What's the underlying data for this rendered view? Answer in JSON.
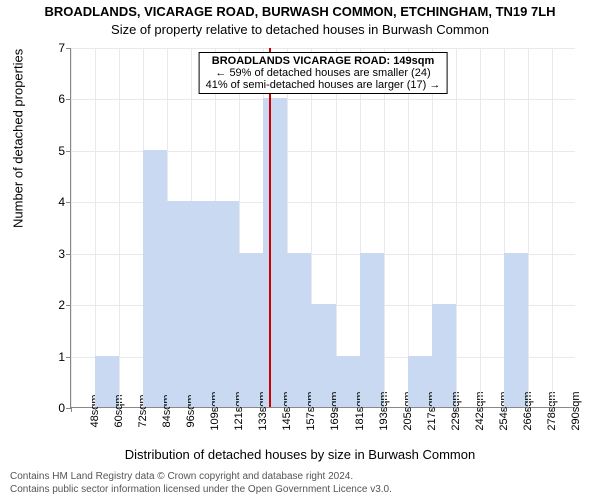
{
  "titles": {
    "main": "BROADLANDS, VICARAGE ROAD, BURWASH COMMON, ETCHINGHAM, TN19 7LH",
    "sub": "Size of property relative to detached houses in Burwash Common"
  },
  "chart": {
    "type": "histogram",
    "ylabel": "Number of detached properties",
    "xlabel": "Distribution of detached houses by size in Burwash Common",
    "ylim": [
      0,
      7
    ],
    "ytick_step": 1,
    "bar_color": "#c9d9f2",
    "bar_border": "#c9d9f2",
    "grid_color": "#e8e8ee",
    "background": "#ffffff",
    "axis_color": "#888888",
    "categories": [
      "48sqm",
      "60sqm",
      "72sqm",
      "84sqm",
      "96sqm",
      "109sqm",
      "121sqm",
      "133sqm",
      "145sqm",
      "157sqm",
      "169sqm",
      "181sqm",
      "193sqm",
      "205sqm",
      "217sqm",
      "229sqm",
      "242sqm",
      "254sqm",
      "266sqm",
      "278sqm",
      "290sqm"
    ],
    "values": [
      0,
      1,
      0,
      5,
      4,
      4,
      4,
      3,
      6,
      3,
      2,
      1,
      3,
      0,
      1,
      2,
      0,
      0,
      3,
      0,
      0
    ],
    "bar_width_ratio": 1.0
  },
  "marker": {
    "position_index": 8.25,
    "color": "#cc0000",
    "annotation_lines": [
      "BROADLANDS VICARAGE ROAD: 149sqm",
      "← 59% of detached houses are smaller (24)",
      "41% of semi-detached houses are larger (17) →"
    ]
  },
  "footer": {
    "line1": "Contains HM Land Registry data © Crown copyright and database right 2024.",
    "line2": "Contains public sector information licensed under the Open Government Licence v3.0."
  }
}
